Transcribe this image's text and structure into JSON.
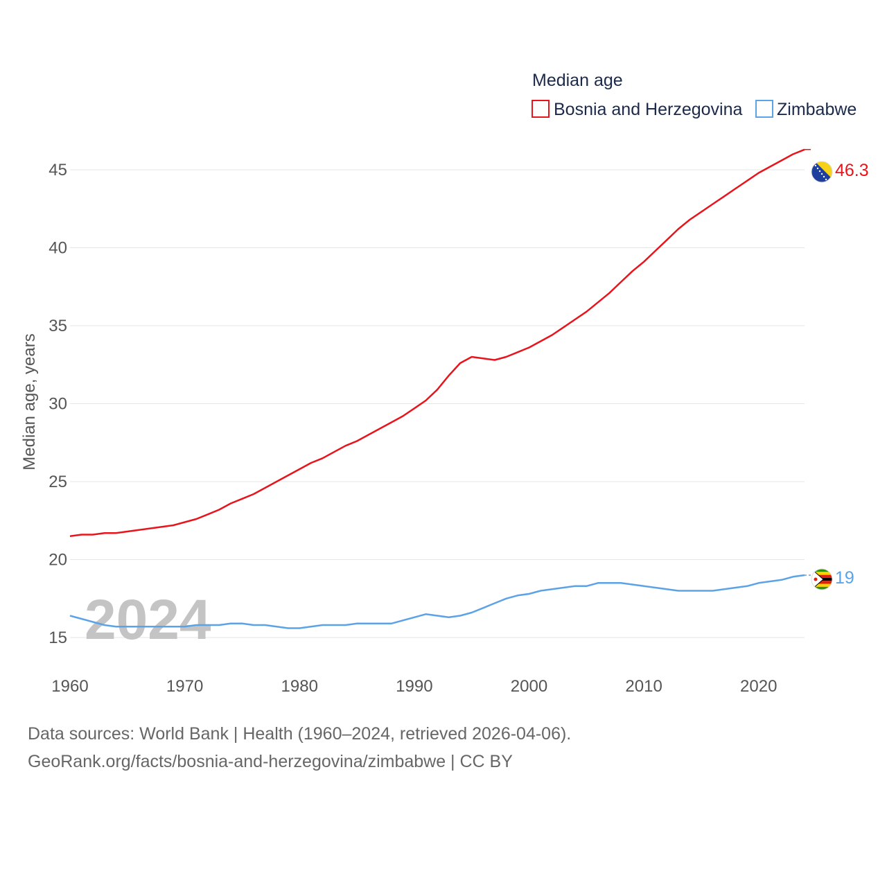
{
  "chart_data": {
    "type": "line",
    "legend_title": "Median age",
    "ylabel": "Median age, years",
    "xlabel": "",
    "year_label": "2024",
    "x": [
      1960,
      1961,
      1962,
      1963,
      1964,
      1965,
      1966,
      1967,
      1968,
      1969,
      1970,
      1971,
      1972,
      1973,
      1974,
      1975,
      1976,
      1977,
      1978,
      1979,
      1980,
      1981,
      1982,
      1983,
      1984,
      1985,
      1986,
      1987,
      1988,
      1989,
      1990,
      1991,
      1992,
      1993,
      1994,
      1995,
      1996,
      1997,
      1998,
      1999,
      2000,
      2001,
      2002,
      2003,
      2004,
      2005,
      2006,
      2007,
      2008,
      2009,
      2010,
      2011,
      2012,
      2013,
      2014,
      2015,
      2016,
      2017,
      2018,
      2019,
      2020,
      2021,
      2022,
      2023,
      2024
    ],
    "series": [
      {
        "name": "Bosnia and Herzegovina",
        "color": "#e8141c",
        "end_label": "46.3",
        "values": [
          21.5,
          21.6,
          21.6,
          21.7,
          21.7,
          21.8,
          21.9,
          22.0,
          22.1,
          22.2,
          22.4,
          22.6,
          22.9,
          23.2,
          23.6,
          23.9,
          24.2,
          24.6,
          25.0,
          25.4,
          25.8,
          26.2,
          26.5,
          26.9,
          27.3,
          27.6,
          28.0,
          28.4,
          28.8,
          29.2,
          29.7,
          30.2,
          30.9,
          31.8,
          32.6,
          33.0,
          32.9,
          32.8,
          33.0,
          33.3,
          33.6,
          34.0,
          34.4,
          34.9,
          35.4,
          35.9,
          36.5,
          37.1,
          37.8,
          38.5,
          39.1,
          39.8,
          40.5,
          41.2,
          41.8,
          42.3,
          42.8,
          43.3,
          43.8,
          44.3,
          44.8,
          45.2,
          45.6,
          46.0,
          46.3
        ]
      },
      {
        "name": "Zimbabwe",
        "color": "#5ba3e6",
        "end_label": "19",
        "values": [
          16.4,
          16.2,
          16.0,
          15.8,
          15.7,
          15.7,
          15.7,
          15.7,
          15.7,
          15.7,
          15.7,
          15.8,
          15.8,
          15.8,
          15.9,
          15.9,
          15.8,
          15.8,
          15.7,
          15.6,
          15.6,
          15.7,
          15.8,
          15.8,
          15.8,
          15.9,
          15.9,
          15.9,
          15.9,
          16.1,
          16.3,
          16.5,
          16.4,
          16.3,
          16.4,
          16.6,
          16.9,
          17.2,
          17.5,
          17.7,
          17.8,
          18.0,
          18.1,
          18.2,
          18.3,
          18.3,
          18.5,
          18.5,
          18.5,
          18.4,
          18.3,
          18.2,
          18.1,
          18.0,
          18.0,
          18.0,
          18.0,
          18.1,
          18.2,
          18.3,
          18.5,
          18.6,
          18.7,
          18.9,
          19.0
        ]
      }
    ],
    "xlim": [
      1960,
      2024
    ],
    "ylim": [
      13,
      47
    ],
    "y_ticks": [
      15,
      20,
      25,
      30,
      35,
      40,
      45
    ],
    "x_ticks": [
      1960,
      1970,
      1980,
      1990,
      2000,
      2010,
      2020
    ],
    "grid": true,
    "legend_position": "top-right"
  },
  "footer": {
    "line1": "Data sources: World Bank | Health (1960–2024, retrieved 2026-04-06).",
    "line2": "GeoRank.org/facts/bosnia-and-herzegovina/zimbabwe | CC BY"
  }
}
